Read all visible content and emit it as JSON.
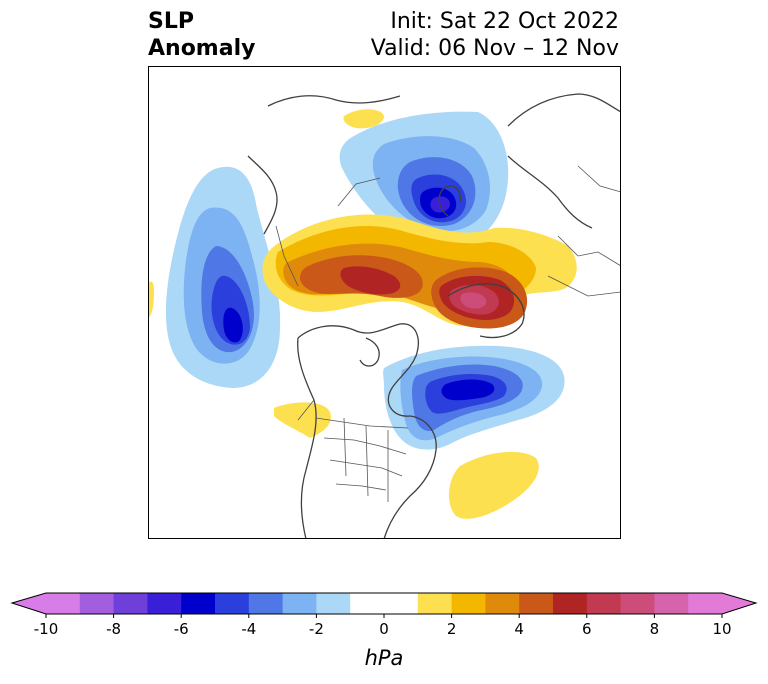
{
  "title": {
    "left_line1": "SLP",
    "left_line2": "Anomaly",
    "init": "Init: Sat 22 Oct 2022",
    "valid": "Valid: 06 Nov – 12 Nov"
  },
  "colorbar": {
    "unit": "hPa",
    "ticks": [
      "-10",
      "-8",
      "-6",
      "-4",
      "-2",
      "0",
      "2",
      "4",
      "6",
      "8",
      "10"
    ],
    "colors": [
      "#d87ce8",
      "#a35ee0",
      "#6e3fd9",
      "#3a1fd8",
      "#0000cc",
      "#2a3fdc",
      "#4f78e6",
      "#7db3f2",
      "#acd8f8",
      "#ffffff",
      "#ffffff",
      "#fde050",
      "#f3b700",
      "#e08a0c",
      "#c95819",
      "#b02424",
      "#c23a52",
      "#cd4d7a",
      "#d664ad",
      "#e27ad8"
    ],
    "extend_min_color": "#d87ce8",
    "extend_max_color": "#e27ad8"
  },
  "map": {
    "projection": "north-polar",
    "anomalies": [
      {
        "name": "north-pacific-low",
        "sign": "negative",
        "peak_hpa": -6
      },
      {
        "name": "north-atlantic-low",
        "sign": "negative",
        "peak_hpa": -6
      },
      {
        "name": "siberian-arctic-low",
        "sign": "negative",
        "peak_hpa": -8
      },
      {
        "name": "eurasia-high",
        "sign": "positive",
        "peak_hpa": 6
      },
      {
        "name": "scandinavia-high",
        "sign": "positive",
        "peak_hpa": 8
      },
      {
        "name": "subtropical-atlantic-high",
        "sign": "positive",
        "peak_hpa": 2
      }
    ]
  }
}
